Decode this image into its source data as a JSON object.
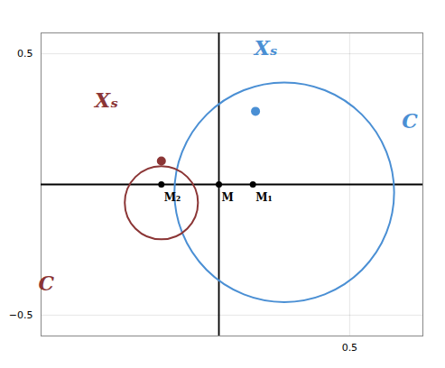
{
  "chart_data": {
    "type": "scatter",
    "xlim": [
      -0.68,
      0.78
    ],
    "ylim": [
      -0.58,
      0.58
    ],
    "xticks": [
      0.5
    ],
    "yticks": [
      -0.5,
      0.5
    ],
    "grid": true,
    "circles": [
      {
        "center": [
          0.25,
          -0.03
        ],
        "radius": 0.42,
        "color": "#4a8fd4"
      },
      {
        "center": [
          -0.22,
          -0.07
        ],
        "radius": 0.14,
        "color": "#8b3535"
      }
    ],
    "points": [
      {
        "x": 0.14,
        "y": 0.28,
        "color": "#4a8fd4"
      },
      {
        "x": -0.22,
        "y": 0.09,
        "color": "#8b3535"
      },
      {
        "x": 0.0,
        "y": 0.0,
        "color": "black",
        "label": "M"
      },
      {
        "x": 0.13,
        "y": 0.0,
        "color": "black",
        "label": "M₁"
      },
      {
        "x": -0.22,
        "y": 0.0,
        "color": "black",
        "label": "M₂"
      }
    ],
    "annotations": [
      {
        "text": "Xₛ",
        "x": 0.18,
        "y": 0.52,
        "color": "#4a8fd4"
      },
      {
        "text": "Xₛ",
        "x": -0.43,
        "y": 0.32,
        "color": "#8b3535"
      },
      {
        "text": "C",
        "x": 0.73,
        "y": 0.24,
        "color": "#4a8fd4"
      },
      {
        "text": "C",
        "x": -0.66,
        "y": -0.38,
        "color": "#8b3535"
      }
    ]
  }
}
